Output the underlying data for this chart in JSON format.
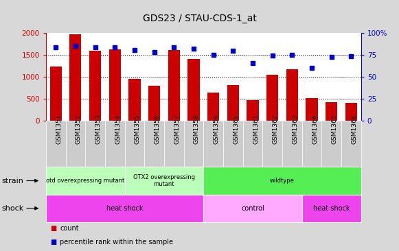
{
  "title": "GDS23 / STAU-CDS-1_at",
  "samples": [
    "GSM1351",
    "GSM1352",
    "GSM1353",
    "GSM1354",
    "GSM1355",
    "GSM1356",
    "GSM1357",
    "GSM1358",
    "GSM1359",
    "GSM1360",
    "GSM1361",
    "GSM1362",
    "GSM1363",
    "GSM1364",
    "GSM1365",
    "GSM1366"
  ],
  "counts": [
    1230,
    1960,
    1580,
    1620,
    940,
    790,
    1610,
    1400,
    630,
    800,
    460,
    1040,
    1170,
    510,
    420,
    400
  ],
  "percentiles": [
    83,
    85,
    83,
    83,
    80,
    78,
    83,
    82,
    75,
    79,
    65,
    74,
    75,
    60,
    72,
    73
  ],
  "ylim_left": [
    0,
    2000
  ],
  "ylim_right": [
    0,
    100
  ],
  "yticks_left": [
    0,
    500,
    1000,
    1500,
    2000
  ],
  "yticks_right": [
    0,
    25,
    50,
    75,
    100
  ],
  "bar_color": "#cc0000",
  "dot_color": "#0000cc",
  "strain_groups": [
    {
      "label": "otd overexpressing mutant",
      "start": 0,
      "end": 4,
      "color": "#bbffbb"
    },
    {
      "label": "OTX2 overexpressing\nmutant",
      "start": 4,
      "end": 8,
      "color": "#bbffbb"
    },
    {
      "label": "wildtype",
      "start": 8,
      "end": 16,
      "color": "#55ee55"
    }
  ],
  "shock_groups": [
    {
      "label": "heat shock",
      "start": 0,
      "end": 8,
      "color": "#ee44ee"
    },
    {
      "label": "control",
      "start": 8,
      "end": 13,
      "color": "#ffaaff"
    },
    {
      "label": "heat shock",
      "start": 13,
      "end": 16,
      "color": "#ee44ee"
    }
  ],
  "strain_label": "strain",
  "shock_label": "shock",
  "legend_count_label": "count",
  "legend_pct_label": "percentile rank within the sample",
  "bg_color": "#d8d8d8",
  "plot_bg_color": "#ffffff",
  "xtick_bg_color": "#cccccc"
}
